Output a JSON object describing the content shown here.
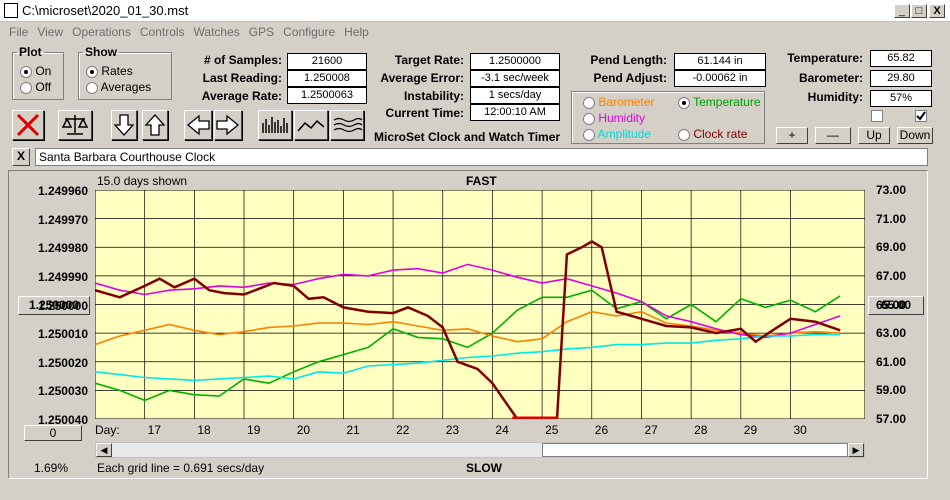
{
  "window": {
    "title": "C:\\microset\\2020_01_30.mst",
    "min": "_",
    "max": "□",
    "close": "X"
  },
  "menu": [
    "File",
    "View",
    "Operations",
    "Controls",
    "Watches",
    "GPS",
    "Configure",
    "Help"
  ],
  "plot": {
    "legend": "Plot",
    "on": "On",
    "off": "Off"
  },
  "show": {
    "legend": "Show",
    "rates": "Rates",
    "averages": "Averages"
  },
  "stats": {
    "samples_label": "# of Samples:",
    "samples": "21600",
    "last_label": "Last Reading:",
    "last": "1.250008",
    "avg_label": "Average Rate:",
    "avg": "1.2500063",
    "target_label": "Target Rate:",
    "target": "1.2500000",
    "err_label": "Average Error:",
    "err": "-3.1 sec/week",
    "inst_label": "Instability:",
    "inst": "1 secs/day",
    "time_label": "Current Time:",
    "time": "12:00:10 AM",
    "pendlen_label": "Pend Length:",
    "pendlen": "61.144 in",
    "pendadj_label": "Pend Adjust:",
    "pendadj": "-0.00062 in",
    "temp_label": "Temperature:",
    "temp": "65.82",
    "baro_label": "Barometer:",
    "baro": "29.80",
    "hum_label": "Humidity:",
    "hum": "57%"
  },
  "app_name": "MicroSet Clock and Watch Timer",
  "series_select": {
    "barometer": "Barometer",
    "temperature": "Temperature",
    "humidity": "Humidity",
    "amplitude": "Amplitude",
    "clockrate": "Clock rate"
  },
  "colors": {
    "barometer": "#ff8000",
    "temperature": "#00b000",
    "humidity": "#e000e0",
    "amplitude": "#00e8e8",
    "rate": "#800000",
    "plotbg": "#ffffc0"
  },
  "adjust": {
    "plus": "+",
    "minus": "—",
    "up": "Up",
    "down": "Down"
  },
  "watch_name": "Santa Barbara Courthouse Clock",
  "close_x": "X",
  "chart": {
    "days_shown": "15.0 days shown",
    "fast": "FAST",
    "slow": "SLOW",
    "grid_note": "Each grid line = 0.691 secs/day",
    "pct": "1.69%",
    "left_btn": "0",
    "right_btn": "65.00",
    "center_btn": "1.250000",
    "day_label": "Day:"
  },
  "chart_data": {
    "type": "line",
    "x_ticks": [
      "17",
      "18",
      "19",
      "20",
      "21",
      "22",
      "23",
      "24",
      "25",
      "26",
      "27",
      "28",
      "29",
      "30"
    ],
    "y_left": [
      "1.249960",
      "1.249970",
      "1.249980",
      "1.249990",
      "1.250000",
      "1.250010",
      "1.250020",
      "1.250030",
      "1.250040"
    ],
    "y_right": [
      "73.00",
      "71.00",
      "69.00",
      "67.00",
      "65.00",
      "63.00",
      "61.00",
      "59.00",
      "57.00"
    ],
    "xlim": [
      16,
      31.5
    ],
    "ylim_right": [
      57,
      73
    ],
    "series": [
      {
        "name": "Temperature",
        "color": "#00b000",
        "x": [
          16,
          16.5,
          17,
          17.5,
          18,
          18.5,
          19,
          19.5,
          20,
          20.5,
          21,
          21.5,
          22,
          22.5,
          23,
          23.5,
          24,
          24.5,
          25,
          25.5,
          26,
          26.5,
          27,
          27.5,
          28,
          28.5,
          29,
          29.5,
          30,
          30.5,
          31
        ],
        "y": [
          59.5,
          59,
          58.3,
          59,
          58.7,
          58.6,
          59.8,
          59.5,
          60.3,
          61,
          61.5,
          62,
          63.3,
          62.7,
          62.6,
          62,
          63,
          64.6,
          65.5,
          65.5,
          66,
          64.7,
          65.2,
          64,
          65,
          63.8,
          65.4,
          64.8,
          65.3,
          64.5,
          65.6
        ]
      },
      {
        "name": "Barometer",
        "color": "#ff8000",
        "x": [
          16,
          16.5,
          17,
          17.5,
          18,
          18.5,
          19,
          19.5,
          20,
          20.5,
          21,
          21.5,
          22,
          22.5,
          23,
          23.5,
          24,
          24.5,
          25,
          25.5,
          26,
          26.5,
          27,
          27.5,
          28,
          28.5,
          29,
          29.5,
          30,
          30.5,
          31
        ],
        "y": [
          62.2,
          62.8,
          63.2,
          63.6,
          63.2,
          62.9,
          63.1,
          63.4,
          63.5,
          63.7,
          63.7,
          63.6,
          63.8,
          63.5,
          63.2,
          63.3,
          62.8,
          62.4,
          62.6,
          63.8,
          64.5,
          64.2,
          64.5,
          63.7,
          63.5,
          63.2,
          63.0,
          62.8,
          63.0,
          63.1,
          63.0
        ]
      },
      {
        "name": "Humidity",
        "color": "#e000e0",
        "x": [
          16,
          16.5,
          17,
          17.5,
          18,
          18.5,
          19,
          19.5,
          20,
          20.5,
          21,
          21.5,
          22,
          22.5,
          23,
          23.5,
          24,
          24.5,
          25,
          25.5,
          26,
          26.5,
          27,
          27.5,
          28,
          28.5,
          29,
          29.5,
          30,
          30.5,
          31
        ],
        "y": [
          66.5,
          66,
          65.7,
          66,
          66.1,
          66.3,
          66.2,
          66.5,
          66.4,
          66.8,
          67.1,
          67,
          67.4,
          67.5,
          67.2,
          67.8,
          67.4,
          66.9,
          66.5,
          66.8,
          66.3,
          65.8,
          65.2,
          64.2,
          63.8,
          63.3,
          62.9,
          62.7,
          63.0,
          63.6,
          64.2
        ]
      },
      {
        "name": "Amplitude",
        "color": "#00e8e8",
        "x": [
          16,
          16.5,
          17,
          17.5,
          18,
          18.5,
          19,
          19.5,
          20,
          20.5,
          21,
          21.5,
          22,
          22.5,
          23,
          23.5,
          24,
          24.5,
          25,
          25.5,
          26,
          26.5,
          27,
          27.5,
          28,
          28.5,
          29,
          29.5,
          30,
          30.5,
          31
        ],
        "y": [
          60.3,
          60.1,
          59.9,
          59.8,
          59.7,
          59.8,
          59.9,
          60.0,
          59.8,
          60.3,
          60.2,
          60.7,
          60.8,
          60.9,
          61.1,
          61.3,
          61.4,
          61.6,
          61.7,
          61.9,
          62.0,
          62.2,
          62.2,
          62.3,
          62.3,
          62.5,
          62.6,
          62.8,
          62.8,
          62.9,
          62.9
        ]
      },
      {
        "name": "Clock rate",
        "color": "#800000",
        "x": [
          16,
          16.5,
          17,
          17.3,
          17.6,
          18,
          18.3,
          18.6,
          19,
          19.3,
          19.6,
          20,
          20.3,
          20.6,
          21,
          21.5,
          22,
          22.3,
          22.7,
          23,
          23.3,
          23.7,
          24,
          24.3,
          24.5,
          25,
          25.3,
          25.5,
          25.8,
          26,
          26.2,
          26.5,
          26.8,
          27,
          27.5,
          28,
          28.5,
          29,
          29.3,
          29.6,
          30,
          30.5,
          31
        ],
        "y": [
          66,
          65.5,
          66.3,
          66.8,
          66.2,
          66.8,
          66,
          65.8,
          65.7,
          66.1,
          66.5,
          66.3,
          65.4,
          65.5,
          64.8,
          64.5,
          64.4,
          64.8,
          64.2,
          63.4,
          61,
          60.5,
          59.5,
          58,
          57,
          57,
          57,
          68.5,
          69,
          69.4,
          69,
          64.5,
          64.2,
          64.0,
          63.5,
          63.4,
          63.0,
          63.3,
          62.4,
          63.1,
          64.0,
          63.8,
          63.2
        ]
      }
    ]
  }
}
